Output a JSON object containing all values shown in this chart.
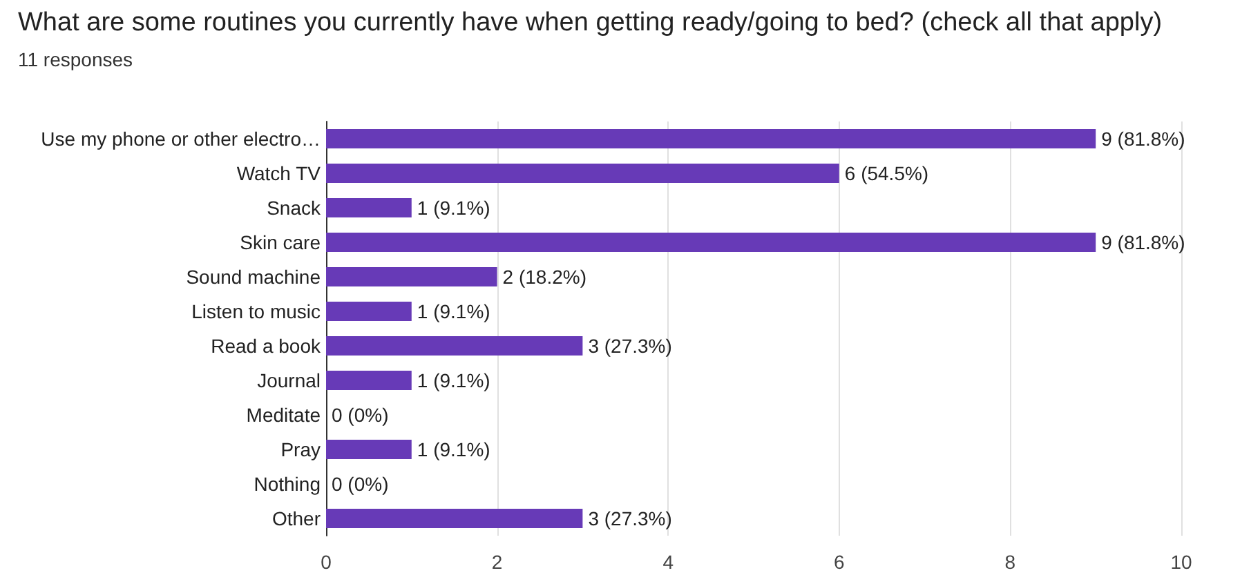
{
  "chart_data": {
    "type": "bar",
    "orientation": "horizontal",
    "title": "What are some routines you currently have when getting ready/going to bed? (check all that apply)",
    "subtitle": "11 responses",
    "categories": [
      "Use my phone or other electro…",
      "Watch TV",
      "Snack",
      "Skin care",
      "Sound machine",
      "Listen to music",
      "Read a book",
      "Journal",
      "Meditate",
      "Pray",
      "Nothing",
      "Other"
    ],
    "values": [
      9,
      6,
      1,
      9,
      2,
      1,
      3,
      1,
      0,
      1,
      0,
      3
    ],
    "value_labels": [
      "9 (81.8%)",
      "6 (54.5%)",
      "1 (9.1%)",
      "9 (81.8%)",
      "2 (18.2%)",
      "1 (9.1%)",
      "3 (27.3%)",
      "1 (9.1%)",
      "0 (0%)",
      "1 (9.1%)",
      "0 (0%)",
      "3 (27.3%)"
    ],
    "color": "#673ab7",
    "xlim": [
      0,
      10
    ],
    "xticks": [
      0,
      2,
      4,
      6,
      8,
      10
    ],
    "grid": "x"
  }
}
